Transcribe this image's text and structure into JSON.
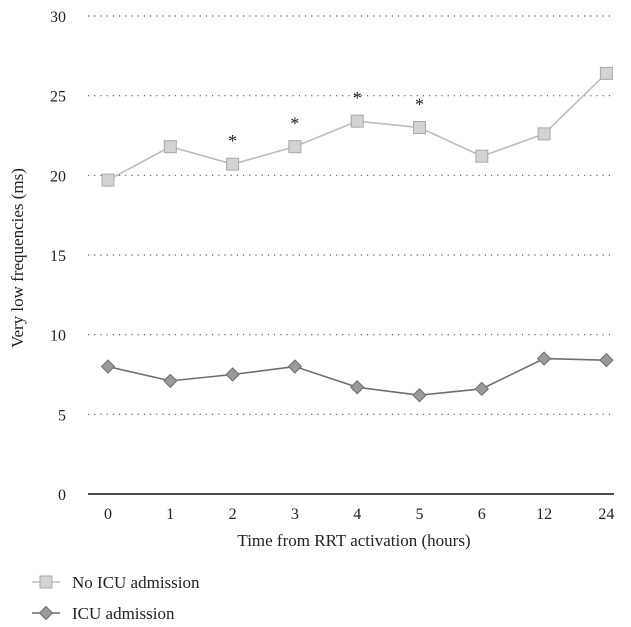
{
  "chart_data": {
    "type": "line",
    "title": "",
    "xlabel": "Time from RRT activation (hours)",
    "ylabel": "Very low frequencies (ms)",
    "categories": [
      "0",
      "1",
      "2",
      "3",
      "4",
      "5",
      "6",
      "12",
      "24"
    ],
    "ylim": [
      0,
      30
    ],
    "yticks": [
      "0",
      "5",
      "10",
      "15",
      "20",
      "25",
      "30"
    ],
    "grid": "horizontal-dotted",
    "legend_position": "bottom-left",
    "series": [
      {
        "name": "No ICU admission",
        "marker": "square",
        "color": "#c8c8c8",
        "values": [
          19.7,
          21.8,
          20.7,
          21.8,
          23.4,
          23.0,
          21.2,
          22.6,
          26.4
        ]
      },
      {
        "name": "ICU admission",
        "marker": "diamond",
        "color": "#8a8a8a",
        "values": [
          8.0,
          7.1,
          7.5,
          8.0,
          6.7,
          6.2,
          6.6,
          8.5,
          8.4
        ]
      }
    ],
    "annotations": [
      {
        "text": "*",
        "category": "2",
        "series": 0
      },
      {
        "text": "*",
        "category": "3",
        "series": 0
      },
      {
        "text": "*",
        "category": "4",
        "series": 0
      },
      {
        "text": "*",
        "category": "5",
        "series": 0
      }
    ]
  }
}
